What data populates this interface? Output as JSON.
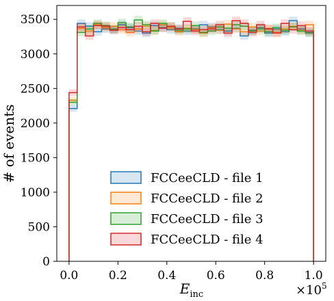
{
  "chart_data": {
    "type": "histogram",
    "xlabel_main": "E",
    "xlabel_sub": "inc",
    "ylabel": "# of events",
    "x_offset_base": "×10",
    "x_offset_exp": "5",
    "xlim": [
      -0.05,
      1.05
    ],
    "ylim": [
      0,
      3700
    ],
    "x_ticks": [
      0.0,
      0.2,
      0.4,
      0.6,
      0.8,
      1.0
    ],
    "x_tick_labels": [
      "0.0",
      "0.2",
      "0.4",
      "0.6",
      "0.8",
      "1.0"
    ],
    "y_ticks": [
      0,
      500,
      1000,
      1500,
      2000,
      2500,
      3000,
      3500
    ],
    "y_tick_labels": [
      "0",
      "500",
      "1000",
      "1500",
      "2000",
      "2500",
      "3000",
      "3500"
    ],
    "bin_edges": [
      0.0,
      0.0333,
      0.0667,
      0.1,
      0.1333,
      0.1667,
      0.2,
      0.2333,
      0.2667,
      0.3,
      0.3333,
      0.3667,
      0.4,
      0.4333,
      0.4667,
      0.5,
      0.5333,
      0.5667,
      0.6,
      0.6333,
      0.6667,
      0.7,
      0.7333,
      0.7667,
      0.8,
      0.8333,
      0.8667,
      0.9,
      0.9333,
      0.9667,
      1.0
    ],
    "legend_position": "lower-center",
    "series": [
      {
        "name": "FCCeeCLD - file 1",
        "color": "#1f77b4",
        "values": [
          2210,
          3440,
          3400,
          3320,
          3360,
          3350,
          3420,
          3380,
          3330,
          3300,
          3410,
          3380,
          3350,
          3370,
          3330,
          3360,
          3420,
          3390,
          3350,
          3330,
          3370,
          3260,
          3340,
          3380,
          3300,
          3360,
          3320,
          3480,
          3360,
          3310
        ]
      },
      {
        "name": "FCCeeCLD - file 2",
        "color": "#ff7f0e",
        "values": [
          2330,
          3370,
          3330,
          3420,
          3380,
          3400,
          3350,
          3310,
          3360,
          3400,
          3340,
          3420,
          3380,
          3320,
          3370,
          3350,
          3300,
          3380,
          3340,
          3430,
          3360,
          3320,
          3390,
          3330,
          3370,
          3310,
          3360,
          3400,
          3340,
          3420
        ]
      },
      {
        "name": "FCCeeCLD - file 3",
        "color": "#2ca02c",
        "values": [
          2300,
          3310,
          3360,
          3440,
          3410,
          3360,
          3450,
          3390,
          3490,
          3420,
          3330,
          3440,
          3400,
          3340,
          3360,
          3410,
          3310,
          3330,
          3390,
          3370,
          3420,
          3400,
          3330,
          3360,
          3320,
          3380,
          3340,
          3390,
          3330,
          3300
        ]
      },
      {
        "name": "FCCeeCLD - file 4",
        "color": "#d62728",
        "values": [
          2440,
          3390,
          3260,
          3410,
          3400,
          3340,
          3380,
          3350,
          3400,
          3320,
          3440,
          3370,
          3400,
          3360,
          3470,
          3330,
          3350,
          3360,
          3420,
          3300,
          3480,
          3440,
          3310,
          3420,
          3360,
          3300,
          3440,
          3350,
          3410,
          3330
        ]
      }
    ]
  }
}
